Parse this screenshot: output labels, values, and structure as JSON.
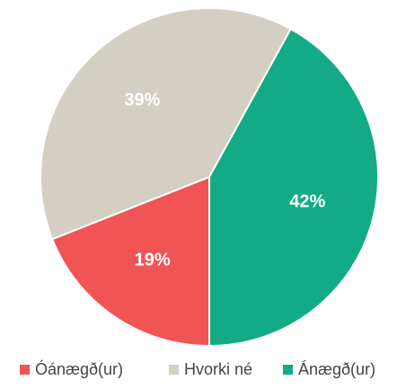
{
  "chart_data": {
    "type": "pie",
    "categories": [
      "Óánægð(ur)",
      "Hvorki né",
      "Ánægð(ur)"
    ],
    "values": [
      19,
      39,
      42
    ],
    "value_labels": [
      "19%",
      "39%",
      "42%"
    ],
    "colors": [
      "#f05454",
      "#d3cfc3",
      "#12ab85"
    ],
    "legend": "bottom"
  }
}
